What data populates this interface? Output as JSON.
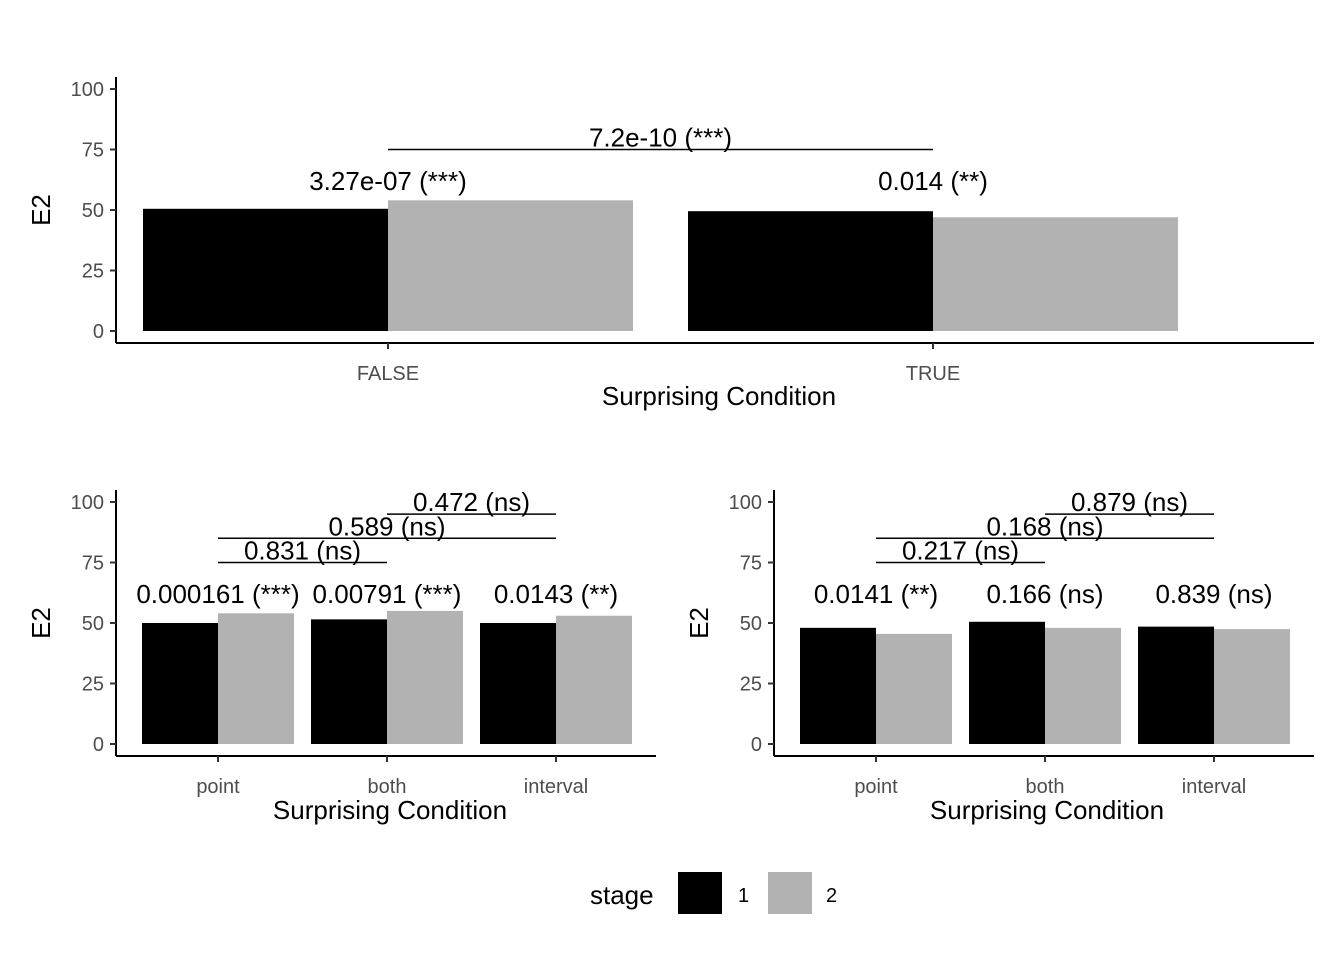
{
  "colors": {
    "stage_1": "#000000",
    "stage_2": "#b2b2b2",
    "axis": "#000000",
    "bracket": "#000000"
  },
  "legend": {
    "title": "stage",
    "placement": "bottom",
    "items": [
      "1",
      "2"
    ]
  },
  "chart_data": [
    {
      "type": "bar",
      "xlabel": "Surprising Condition",
      "ylabel": "E2",
      "ylim": [
        0,
        100
      ],
      "yticks": [
        "0",
        "25",
        "50",
        "75",
        "100"
      ],
      "categories": [
        "FALSE",
        "TRUE"
      ],
      "series": [
        {
          "name": "1",
          "values": [
            50.5,
            49.5
          ]
        },
        {
          "name": "2",
          "values": [
            54,
            47
          ]
        }
      ],
      "pair_labels": [
        "3.27e-07 (***)",
        "0.014 (**)"
      ],
      "brackets": [
        {
          "from": "FALSE",
          "to": "TRUE",
          "y": 75,
          "label": "7.2e-10 (***)"
        }
      ]
    },
    {
      "type": "bar",
      "xlabel": "Surprising Condition",
      "ylabel": "E2",
      "ylim": [
        0,
        100
      ],
      "yticks": [
        "0",
        "25",
        "50",
        "75",
        "100"
      ],
      "categories": [
        "point",
        "both",
        "interval"
      ],
      "series": [
        {
          "name": "1",
          "values": [
            50,
            51.5,
            50
          ]
        },
        {
          "name": "2",
          "values": [
            54,
            55,
            53
          ]
        }
      ],
      "pair_labels": [
        "0.000161 (***)",
        "0.00791 (***)",
        "0.0143 (**)"
      ],
      "brackets": [
        {
          "from": "point",
          "to": "both",
          "y": 75,
          "label": "0.831 (ns)"
        },
        {
          "from": "point",
          "to": "interval",
          "y": 85,
          "label": "0.589 (ns)"
        },
        {
          "from": "both",
          "to": "interval",
          "y": 95,
          "label": "0.472 (ns)"
        }
      ]
    },
    {
      "type": "bar",
      "xlabel": "Surprising Condition",
      "ylabel": "E2",
      "ylim": [
        0,
        100
      ],
      "yticks": [
        "0",
        "25",
        "50",
        "75",
        "100"
      ],
      "categories": [
        "point",
        "both",
        "interval"
      ],
      "series": [
        {
          "name": "1",
          "values": [
            48,
            50.5,
            48.5
          ]
        },
        {
          "name": "2",
          "values": [
            45.5,
            48,
            47.5
          ]
        }
      ],
      "pair_labels": [
        "0.0141 (**)",
        "0.166 (ns)",
        "0.839 (ns)"
      ],
      "brackets": [
        {
          "from": "point",
          "to": "both",
          "y": 75,
          "label": "0.217 (ns)"
        },
        {
          "from": "point",
          "to": "interval",
          "y": 85,
          "label": "0.168 (ns)"
        },
        {
          "from": "both",
          "to": "interval",
          "y": 95,
          "label": "0.879 (ns)"
        }
      ]
    }
  ]
}
